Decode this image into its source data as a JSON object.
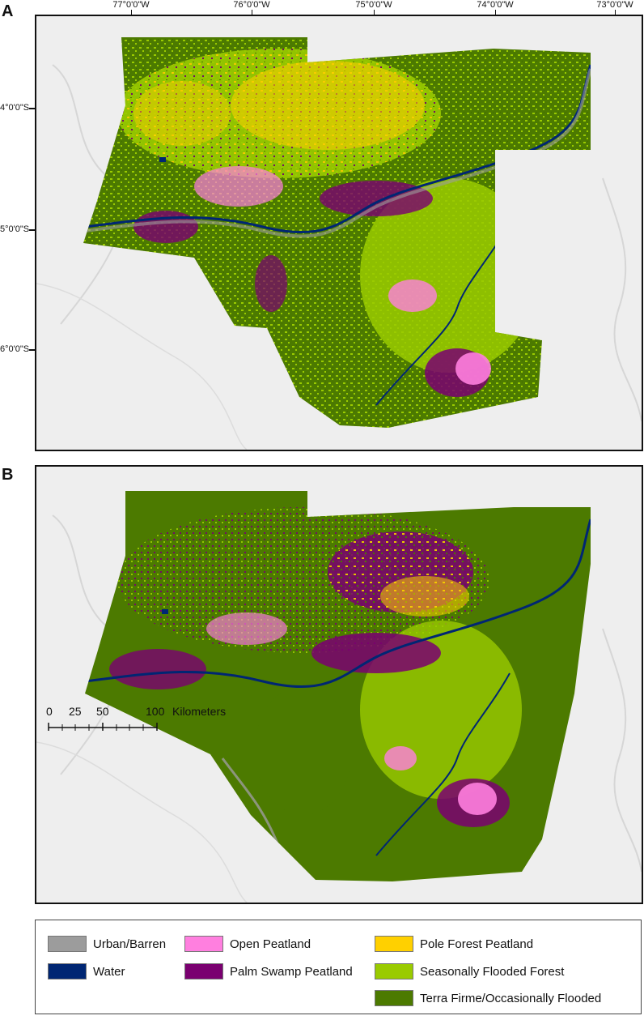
{
  "panels": {
    "a": {
      "label": "A"
    },
    "b": {
      "label": "B"
    }
  },
  "graticule": {
    "longitudes": [
      "77°0'0\"W",
      "76°0'0\"W",
      "75°0'0\"W",
      "74°0'0\"W",
      "73°0'0\"W"
    ],
    "latitudes": [
      "4°0'0\"S",
      "5°0'0\"S",
      "6°0'0\"S"
    ]
  },
  "scalebar": {
    "ticks": [
      "0",
      "25",
      "50",
      "100"
    ],
    "unit": "Kilometers"
  },
  "legend": {
    "items": [
      {
        "label": "Urban/Barren",
        "color": "#9c9c9c"
      },
      {
        "label": "Water",
        "color": "#002673"
      },
      {
        "label": "Open Peatland",
        "color": "#ff7fdf"
      },
      {
        "label": "Palm Swamp Peatland",
        "color": "#7a0070"
      },
      {
        "label": "Pole Forest Peatland",
        "color": "#ffd000"
      },
      {
        "label": "Seasonally Flooded Forest",
        "color": "#9acb00"
      },
      {
        "label": "Terra Firme/Occasionally Flooded",
        "color": "#4c7a00"
      }
    ]
  }
}
